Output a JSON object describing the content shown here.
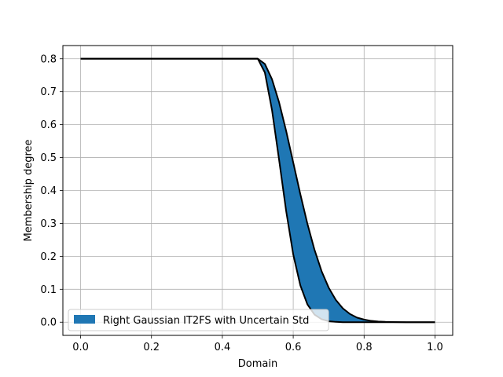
{
  "chart_data": {
    "type": "area",
    "title": "",
    "xlabel": "Domain",
    "ylabel": "Membership degree",
    "xlim": [
      -0.05,
      1.05
    ],
    "ylim": [
      -0.04,
      0.84
    ],
    "x_ticks": [
      0.0,
      0.2,
      0.4,
      0.6,
      0.8,
      1.0
    ],
    "x_tick_labels": [
      "0.0",
      "0.2",
      "0.4",
      "0.6",
      "0.8",
      "1.0"
    ],
    "y_ticks": [
      0.0,
      0.1,
      0.2,
      0.3,
      0.4,
      0.5,
      0.6,
      0.7,
      0.8
    ],
    "y_tick_labels": [
      "0.0",
      "0.1",
      "0.2",
      "0.3",
      "0.4",
      "0.5",
      "0.6",
      "0.7",
      "0.8"
    ],
    "grid": true,
    "legend": {
      "position": "lower-left",
      "entries": [
        "Right Gaussian IT2FS with Uncertain Std"
      ]
    },
    "colors": {
      "fill": "#1f77b4",
      "line": "#000000",
      "grid": "#b0b0b0"
    },
    "series": [
      {
        "name": "Right Gaussian IT2FS with Uncertain Std",
        "x": [
          0.0,
          0.5,
          0.52,
          0.54,
          0.56,
          0.58,
          0.6,
          0.62,
          0.64,
          0.66,
          0.68,
          0.7,
          0.72,
          0.74,
          0.76,
          0.78,
          0.8,
          0.82,
          0.84,
          0.86,
          0.88,
          0.9,
          0.92,
          0.94,
          0.96,
          0.98,
          1.0
        ],
        "upper": [
          0.8,
          0.8,
          0.784,
          0.738,
          0.668,
          0.581,
          0.485,
          0.389,
          0.299,
          0.22,
          0.155,
          0.105,
          0.068,
          0.042,
          0.025,
          0.014,
          0.008,
          0.004,
          0.002,
          0.001,
          0.0005,
          0.0002,
          0.0001,
          0.0,
          0.0,
          0.0,
          0.0
        ],
        "lower": [
          0.8,
          0.8,
          0.758,
          0.645,
          0.494,
          0.338,
          0.206,
          0.112,
          0.054,
          0.023,
          0.009,
          0.003,
          0.001,
          0.0,
          0.0,
          0.0,
          0.0,
          0.0,
          0.0,
          0.0,
          0.0,
          0.0,
          0.0,
          0.0,
          0.0,
          0.0,
          0.0
        ]
      }
    ]
  }
}
